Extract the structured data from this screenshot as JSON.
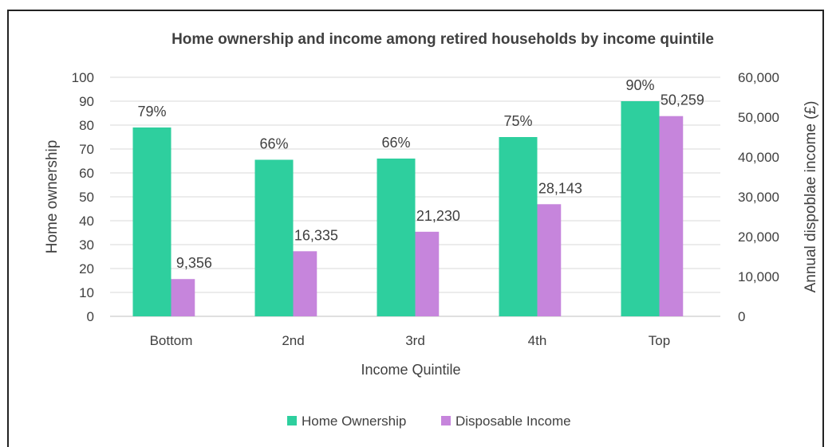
{
  "chart_data": {
    "type": "bar",
    "title": "Home ownership and income among retired households by income quintile",
    "xlabel": "Income Quintile",
    "ylabel": "Home ownership",
    "y2label": "Annual dispoblae income (£)",
    "categories": [
      "Bottom",
      "2nd",
      "3rd",
      "4th",
      "Top"
    ],
    "ylim": [
      0,
      100
    ],
    "y_ticks": [
      "0",
      "10",
      "20",
      "30",
      "40",
      "50",
      "60",
      "70",
      "80",
      "90",
      "100"
    ],
    "y2lim": [
      0,
      60000
    ],
    "y2_ticks": [
      "0",
      "10,000",
      "20,000",
      "30,000",
      "40,000",
      "50,000",
      "60,000"
    ],
    "grid": true,
    "legend_position": "bottom",
    "series": [
      {
        "name": "Home Ownership",
        "axis": "left",
        "color": "#2ecf9e",
        "values": [
          79,
          65.5,
          66,
          75,
          90
        ],
        "labels": [
          "79%",
          "66%",
          "66%",
          "75%",
          "90%"
        ]
      },
      {
        "name": "Disposable Income",
        "axis": "right",
        "color": "#c685dc",
        "values": [
          9356,
          16335,
          21230,
          28143,
          50259
        ],
        "labels": [
          "9,356",
          "16,335",
          "21,230",
          "28,143",
          "50,259"
        ]
      }
    ]
  }
}
